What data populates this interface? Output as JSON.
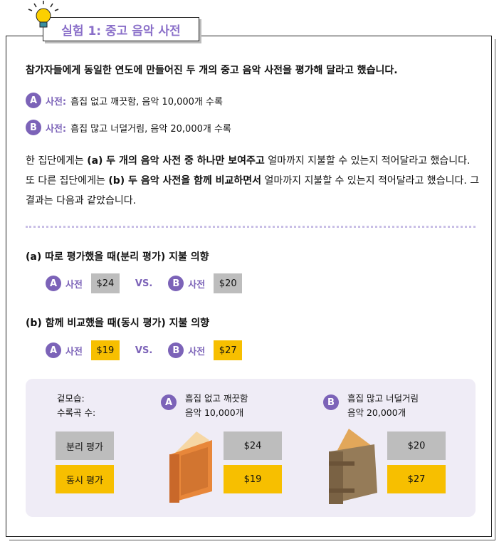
{
  "title": "실험 1: 중고 음악 사전",
  "intro": "참가자들에게 동일한 연도에 만들어진 두 개의 중고 음악 사전을 평가해 달라고 했습니다.",
  "items": [
    {
      "badge": "A",
      "label": "사전:",
      "desc": "흠집 없고 깨끗함, 음악 10,000개 수록"
    },
    {
      "badge": "B",
      "label": "사전:",
      "desc": "흠집 많고 너덜거림, 음악 20,000개 수록"
    }
  ],
  "para": {
    "p1": "한 집단에게는 ",
    "b1": "(a) 두 개의 음악 사전 중 하나만 보여주고",
    "p2": " 얼마까지 지불할 수 있는지 적어달라고 했습니다. 또 다른 집단에게는 ",
    "b2": "(b) 두 음악 사전을 함께 비교하면서",
    "p3": " 얼마까지 지불할 수 있는지 적어달라고 했습니다. 그 결과는 다음과 같았습니다."
  },
  "sectionA": {
    "heading": "(a) 따로 평가했을 때(분리 평가) 지불 의향",
    "a_label": "사전",
    "a_price": "$24",
    "vs": "VS.",
    "b_label": "사전",
    "b_price": "$20"
  },
  "sectionB": {
    "heading": "(b) 함께 비교했을 때(동시 평가) 지불 의향",
    "a_label": "사전",
    "a_price": "$19",
    "vs": "VS.",
    "b_label": "사전",
    "b_price": "$27"
  },
  "panel": {
    "row_label1": "겉모습:",
    "row_label2": "수록곡 수:",
    "sep_label": "분리 평가",
    "joint_label": "동시 평가",
    "a": {
      "badge": "A",
      "line1": "흠집 없고 깨끗함",
      "line2": "음악 10,000개",
      "sep": "$24",
      "joint": "$19"
    },
    "b": {
      "badge": "B",
      "line1": "흠집 많고 너덜거림",
      "line2": "음악 20,000개",
      "sep": "$20",
      "joint": "$27"
    }
  },
  "colors": {
    "accent": "#7c63b8",
    "separate": "#bdbdbd",
    "joint": "#f7bf00",
    "panel": "#efecf6"
  }
}
